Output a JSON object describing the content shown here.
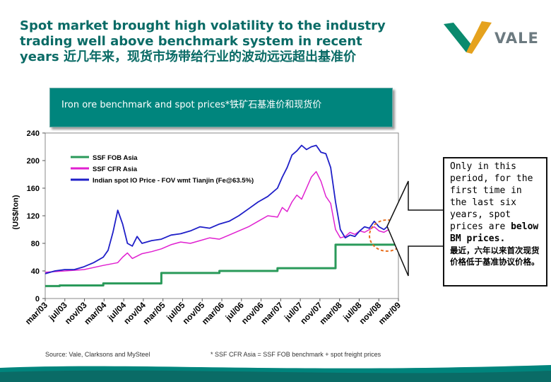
{
  "title": {
    "line1": "Spot market brought high volatility to the industry",
    "line2": "trading well above benchmark system in recent",
    "line3": "years 近几年来，现货市场带给行业的波动远远超出基准价"
  },
  "logo": {
    "text": "VALE",
    "icon": "vale-logo-icon"
  },
  "subtitle": "Iron ore benchmark and spot prices*铁矿石基准价和现货价",
  "callout": {
    "en_pre": "Only in this period, for the first time in the last six years, spot prices are ",
    "en_bold": "below BM prices.",
    "zh": "最近，六年以来首次现货价格低于基准协议价格。"
  },
  "source": "Source: Vale, Clarksons and MySteel",
  "footnote": "* SSF CFR Asia = SSF FOB  benchmark + spot freight prices",
  "colors": {
    "title": "#0a6b66",
    "benchmark": "#2a9a5a",
    "cfr": "#e020d0",
    "indian": "#1f1fc8",
    "plot_bg": "#ffffff",
    "accent_orange": "#e87020",
    "footer": "#00857d"
  },
  "chart_data": {
    "type": "line",
    "title": "Iron ore benchmark and spot prices*铁矿石基准价和现货价",
    "xlabel": "",
    "ylabel": "(US$/ton)",
    "ylim": [
      0,
      240
    ],
    "yticks": [
      0,
      40,
      80,
      120,
      160,
      200,
      240
    ],
    "grid": false,
    "legend_position": "top-left",
    "x_ticks": [
      "mar/03",
      "jul/03",
      "nov/03",
      "mar/04",
      "jul/04",
      "nov/04",
      "mar/05",
      "jul/05",
      "nov/05",
      "mar/06",
      "jul/06",
      "nov/06",
      "mar/07",
      "jul/07",
      "nov/07",
      "mar/08",
      "jul/08",
      "nov/08",
      "mar/09"
    ],
    "series": [
      {
        "name": "SSF FOB Asia",
        "color": "#2a9a5a",
        "values": [
          [
            0,
            18
          ],
          [
            3,
            18
          ],
          [
            3,
            19
          ],
          [
            12,
            19
          ],
          [
            12,
            22
          ],
          [
            24,
            22
          ],
          [
            24,
            37
          ],
          [
            36,
            37
          ],
          [
            36,
            40
          ],
          [
            48,
            40
          ],
          [
            48,
            44
          ],
          [
            60,
            44
          ],
          [
            60,
            78
          ],
          [
            73,
            78
          ]
        ]
      },
      {
        "name": "SSF CFR Asia",
        "color": "#e020d0",
        "values": [
          [
            0,
            38
          ],
          [
            4,
            40
          ],
          [
            8,
            42
          ],
          [
            12,
            48
          ],
          [
            15,
            52
          ],
          [
            16,
            60
          ],
          [
            17,
            66
          ],
          [
            18,
            58
          ],
          [
            20,
            65
          ],
          [
            22,
            68
          ],
          [
            24,
            72
          ],
          [
            26,
            78
          ],
          [
            28,
            82
          ],
          [
            30,
            80
          ],
          [
            32,
            84
          ],
          [
            34,
            88
          ],
          [
            36,
            86
          ],
          [
            38,
            92
          ],
          [
            40,
            98
          ],
          [
            42,
            104
          ],
          [
            44,
            112
          ],
          [
            46,
            120
          ],
          [
            48,
            118
          ],
          [
            49,
            132
          ],
          [
            50,
            126
          ],
          [
            51,
            140
          ],
          [
            52,
            150
          ],
          [
            53,
            144
          ],
          [
            54,
            160
          ],
          [
            55,
            176
          ],
          [
            56,
            184
          ],
          [
            57,
            170
          ],
          [
            58,
            148
          ],
          [
            59,
            138
          ],
          [
            60,
            100
          ],
          [
            61,
            88
          ],
          [
            62,
            90
          ],
          [
            63,
            96
          ],
          [
            64,
            93
          ],
          [
            65,
            98
          ],
          [
            66,
            96
          ],
          [
            67,
            100
          ],
          [
            68,
            104
          ],
          [
            69,
            98
          ],
          [
            70,
            96
          ],
          [
            71,
            100
          ],
          [
            72,
            94
          ],
          [
            73,
            96
          ]
        ]
      },
      {
        "name": "Indian spot IO Price - FOV wmt Tianjin (Fe@63.5%)",
        "color": "#1f1fc8",
        "values": [
          [
            0,
            36
          ],
          [
            2,
            40
          ],
          [
            4,
            42
          ],
          [
            6,
            42
          ],
          [
            8,
            46
          ],
          [
            10,
            52
          ],
          [
            12,
            60
          ],
          [
            13,
            70
          ],
          [
            14,
            96
          ],
          [
            15,
            128
          ],
          [
            16,
            108
          ],
          [
            17,
            80
          ],
          [
            18,
            76
          ],
          [
            19,
            90
          ],
          [
            20,
            80
          ],
          [
            22,
            84
          ],
          [
            24,
            86
          ],
          [
            26,
            92
          ],
          [
            28,
            94
          ],
          [
            30,
            98
          ],
          [
            32,
            104
          ],
          [
            34,
            102
          ],
          [
            36,
            108
          ],
          [
            38,
            112
          ],
          [
            40,
            120
          ],
          [
            42,
            130
          ],
          [
            44,
            140
          ],
          [
            46,
            148
          ],
          [
            48,
            160
          ],
          [
            49,
            176
          ],
          [
            50,
            190
          ],
          [
            51,
            208
          ],
          [
            52,
            214
          ],
          [
            53,
            222
          ],
          [
            54,
            216
          ],
          [
            55,
            220
          ],
          [
            56,
            222
          ],
          [
            57,
            212
          ],
          [
            58,
            210
          ],
          [
            59,
            190
          ],
          [
            60,
            140
          ],
          [
            61,
            100
          ],
          [
            62,
            88
          ],
          [
            63,
            92
          ],
          [
            64,
            90
          ],
          [
            65,
            98
          ],
          [
            66,
            104
          ],
          [
            67,
            102
          ],
          [
            68,
            112
          ],
          [
            69,
            104
          ],
          [
            70,
            100
          ],
          [
            71,
            106
          ],
          [
            72,
            100
          ],
          [
            73,
            98
          ]
        ]
      }
    ]
  }
}
